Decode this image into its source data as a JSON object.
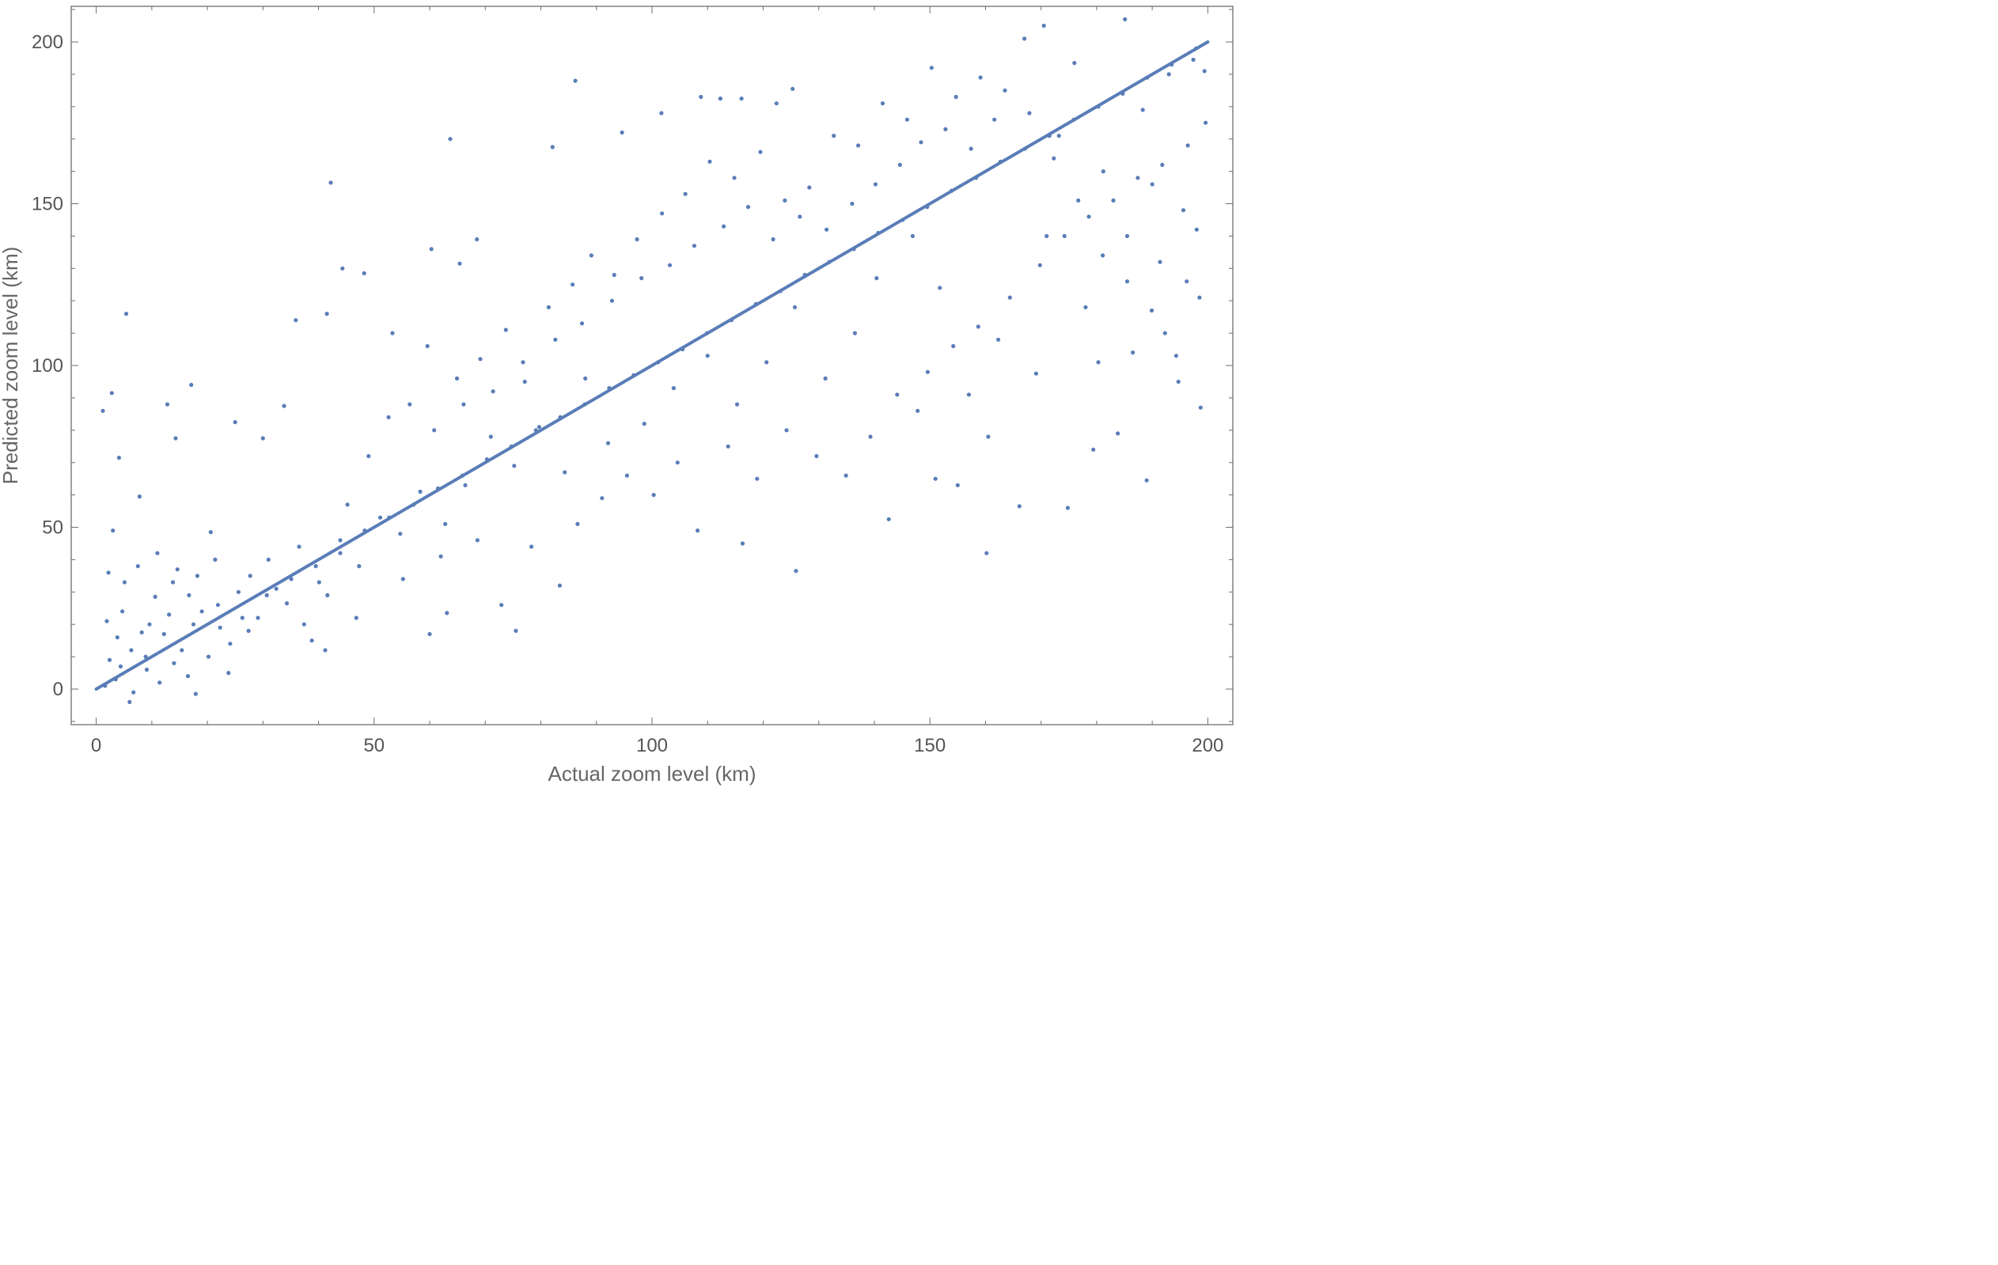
{
  "chart_data": {
    "type": "scatter",
    "title": "",
    "xlabel": "Actual zoom level (km)",
    "ylabel": "Predicted zoom level (km)",
    "xlim": [
      -4.5,
      204.5
    ],
    "ylim": [
      -11,
      211
    ],
    "x_ticks": [
      0,
      50,
      100,
      150,
      200
    ],
    "y_ticks": [
      0,
      50,
      100,
      150,
      200
    ],
    "x_tick_labels": [
      "0",
      "50",
      "100",
      "150",
      "200"
    ],
    "y_tick_labels": [
      "0",
      "50",
      "100",
      "150",
      "200"
    ],
    "grid": false,
    "legend": "none",
    "point_color": "#5a7db8",
    "line_color": "#5a7db8",
    "reference_line": {
      "x": [
        0,
        200
      ],
      "y": [
        0,
        200
      ]
    },
    "points": [
      [
        1.2,
        86
      ],
      [
        2.8,
        91.5
      ],
      [
        4.1,
        71.5
      ],
      [
        5.4,
        116
      ],
      [
        17.1,
        94
      ],
      [
        14.3,
        77.5
      ],
      [
        12.8,
        88
      ],
      [
        25.0,
        82.5
      ],
      [
        30.0,
        77.5
      ],
      [
        35.9,
        114
      ],
      [
        33.8,
        87.5
      ],
      [
        41.5,
        116
      ],
      [
        42.2,
        156.5
      ],
      [
        44.3,
        130
      ],
      [
        48.2,
        128.5
      ],
      [
        53.3,
        110
      ],
      [
        60.3,
        136
      ],
      [
        63.7,
        170
      ],
      [
        65.4,
        131.5
      ],
      [
        68.5,
        139
      ],
      [
        86.2,
        188
      ],
      [
        82.1,
        167.5
      ],
      [
        94.6,
        172
      ],
      [
        101.7,
        178
      ],
      [
        108.8,
        183
      ],
      [
        112.3,
        182.5
      ],
      [
        116.1,
        182.5
      ],
      [
        122.4,
        181
      ],
      [
        125.3,
        185.5
      ],
      [
        60.0,
        17
      ],
      [
        75.5,
        18
      ],
      [
        63.1,
        23.5
      ],
      [
        83.4,
        32
      ],
      [
        17.9,
        -1.5
      ],
      [
        6.0,
        -4
      ],
      [
        3.0,
        49
      ],
      [
        7.8,
        59.5
      ],
      [
        20.6,
        48.5
      ],
      [
        125.9,
        36.5
      ],
      [
        116.3,
        45
      ],
      [
        160.2,
        42
      ],
      [
        189.0,
        64.5
      ],
      [
        174.8,
        56
      ],
      [
        166.1,
        56.5
      ],
      [
        142.6,
        52.5
      ],
      [
        155.0,
        63
      ],
      [
        151.0,
        65
      ],
      [
        147.8,
        86
      ],
      [
        179.4,
        74
      ],
      [
        160.5,
        78
      ],
      [
        183.8,
        79
      ],
      [
        186.5,
        104
      ],
      [
        192.3,
        110
      ],
      [
        194.7,
        95
      ],
      [
        198.5,
        121
      ],
      [
        170.5,
        205
      ],
      [
        185.1,
        207
      ],
      [
        167.0,
        201
      ],
      [
        193.0,
        190
      ],
      [
        197.4,
        194.5
      ],
      [
        199.4,
        191
      ],
      [
        176.0,
        193.5
      ],
      [
        188.3,
        179
      ],
      [
        173.2,
        171
      ],
      [
        181.2,
        160
      ],
      [
        190.0,
        156
      ],
      [
        195.6,
        148
      ],
      [
        198.0,
        142
      ],
      [
        196.2,
        126
      ],
      [
        191.4,
        132
      ],
      [
        185.5,
        140
      ],
      [
        178.0,
        118
      ],
      [
        171.0,
        140
      ],
      [
        180.3,
        101
      ],
      [
        169.1,
        97.5
      ],
      [
        157.0,
        91
      ],
      [
        162.3,
        108
      ],
      [
        151.8,
        124
      ],
      [
        146.9,
        140
      ],
      [
        140.4,
        127
      ],
      [
        136.5,
        110
      ],
      [
        131.2,
        96
      ],
      [
        125.7,
        118
      ],
      [
        120.6,
        101
      ],
      [
        115.3,
        88
      ],
      [
        110.0,
        103
      ],
      [
        103.9,
        93
      ],
      [
        98.6,
        82
      ],
      [
        92.1,
        76
      ],
      [
        88.0,
        96
      ],
      [
        84.3,
        67
      ],
      [
        79.7,
        81
      ],
      [
        75.2,
        69
      ],
      [
        71.0,
        78
      ],
      [
        66.4,
        63
      ],
      [
        62.8,
        51
      ],
      [
        58.3,
        61
      ],
      [
        54.7,
        48
      ],
      [
        51.1,
        53
      ],
      [
        47.3,
        38
      ],
      [
        43.9,
        46
      ],
      [
        40.1,
        33
      ],
      [
        36.5,
        44
      ],
      [
        32.4,
        31
      ],
      [
        29.1,
        22
      ],
      [
        25.6,
        30
      ],
      [
        22.3,
        19
      ],
      [
        19.0,
        24
      ],
      [
        15.4,
        12
      ],
      [
        12.2,
        17
      ],
      [
        9.1,
        6
      ],
      [
        6.3,
        12
      ],
      [
        3.5,
        3
      ],
      [
        1.9,
        21
      ],
      [
        2.4,
        9
      ],
      [
        4.7,
        24
      ],
      [
        8.2,
        17.5
      ],
      [
        10.6,
        28.5
      ],
      [
        13.8,
        33
      ],
      [
        16.7,
        29
      ],
      [
        21.4,
        40
      ],
      [
        24.1,
        14
      ],
      [
        27.7,
        35
      ],
      [
        31.0,
        40
      ],
      [
        34.3,
        26.5
      ],
      [
        38.8,
        15
      ],
      [
        41.6,
        29
      ],
      [
        45.2,
        57
      ],
      [
        49.0,
        72
      ],
      [
        52.6,
        84
      ],
      [
        56.4,
        88
      ],
      [
        59.6,
        106
      ],
      [
        64.9,
        96
      ],
      [
        69.1,
        102
      ],
      [
        73.7,
        111
      ],
      [
        77.1,
        95
      ],
      [
        81.4,
        118
      ],
      [
        85.7,
        125
      ],
      [
        89.1,
        134
      ],
      [
        93.2,
        128
      ],
      [
        97.3,
        139
      ],
      [
        101.8,
        147
      ],
      [
        106.0,
        153
      ],
      [
        110.4,
        163
      ],
      [
        114.8,
        158
      ],
      [
        119.5,
        166
      ],
      [
        123.9,
        151
      ],
      [
        128.3,
        155
      ],
      [
        132.7,
        171
      ],
      [
        137.1,
        168
      ],
      [
        141.5,
        181
      ],
      [
        145.9,
        176
      ],
      [
        150.3,
        192
      ],
      [
        154.7,
        183
      ],
      [
        159.1,
        189
      ],
      [
        163.5,
        185
      ],
      [
        167.9,
        178
      ],
      [
        172.3,
        164
      ],
      [
        176.7,
        151
      ],
      [
        181.1,
        134
      ],
      [
        185.5,
        126
      ],
      [
        189.9,
        117
      ],
      [
        194.3,
        103
      ],
      [
        198.7,
        87
      ],
      [
        2.2,
        36
      ],
      [
        5.1,
        33
      ],
      [
        7.5,
        38
      ],
      [
        11.0,
        42
      ],
      [
        14.6,
        37
      ],
      [
        18.2,
        35
      ],
      [
        11.4,
        2
      ],
      [
        14.0,
        8
      ],
      [
        16.5,
        4
      ],
      [
        20.2,
        10
      ],
      [
        23.8,
        5
      ],
      [
        27.4,
        18
      ],
      [
        3.8,
        16
      ],
      [
        6.7,
        -1
      ],
      [
        9.6,
        20
      ],
      [
        1.6,
        1
      ],
      [
        4.4,
        7
      ],
      [
        8.9,
        10
      ],
      [
        13.1,
        23
      ],
      [
        17.5,
        20
      ],
      [
        21.9,
        26
      ],
      [
        26.3,
        22
      ],
      [
        30.7,
        29
      ],
      [
        35.1,
        34
      ],
      [
        39.5,
        38
      ],
      [
        43.9,
        42
      ],
      [
        48.3,
        49
      ],
      [
        52.7,
        53
      ],
      [
        57.1,
        57
      ],
      [
        61.5,
        62
      ],
      [
        65.9,
        66
      ],
      [
        70.3,
        71
      ],
      [
        74.7,
        75
      ],
      [
        79.1,
        80
      ],
      [
        83.5,
        84
      ],
      [
        87.9,
        88
      ],
      [
        92.3,
        93
      ],
      [
        96.7,
        97
      ],
      [
        101.1,
        101
      ],
      [
        105.5,
        105
      ],
      [
        109.9,
        110
      ],
      [
        114.3,
        114
      ],
      [
        118.7,
        119
      ],
      [
        123.1,
        123
      ],
      [
        127.5,
        128
      ],
      [
        131.9,
        132
      ],
      [
        136.3,
        136
      ],
      [
        140.7,
        141
      ],
      [
        145.1,
        145
      ],
      [
        149.5,
        149
      ],
      [
        153.9,
        154
      ],
      [
        158.3,
        158
      ],
      [
        162.7,
        163
      ],
      [
        167.1,
        167
      ],
      [
        171.5,
        171
      ],
      [
        175.9,
        176
      ],
      [
        180.3,
        180
      ],
      [
        184.7,
        184
      ],
      [
        189.1,
        189
      ],
      [
        193.5,
        193
      ],
      [
        197.9,
        198
      ],
      [
        37.4,
        20
      ],
      [
        41.2,
        12
      ],
      [
        46.8,
        22
      ],
      [
        55.2,
        34
      ],
      [
        62.0,
        41
      ],
      [
        68.6,
        46
      ],
      [
        72.9,
        26
      ],
      [
        78.3,
        44
      ],
      [
        86.6,
        51
      ],
      [
        91.0,
        59
      ],
      [
        95.5,
        66
      ],
      [
        100.3,
        60
      ],
      [
        104.6,
        70
      ],
      [
        108.2,
        49
      ],
      [
        113.7,
        75
      ],
      [
        118.9,
        65
      ],
      [
        124.2,
        80
      ],
      [
        129.6,
        72
      ],
      [
        134.9,
        66
      ],
      [
        139.3,
        78
      ],
      [
        144.1,
        91
      ],
      [
        149.6,
        98
      ],
      [
        154.2,
        106
      ],
      [
        158.7,
        112
      ],
      [
        164.4,
        121
      ],
      [
        169.8,
        131
      ],
      [
        174.2,
        140
      ],
      [
        178.6,
        146
      ],
      [
        183.0,
        151
      ],
      [
        187.4,
        158
      ],
      [
        191.8,
        162
      ],
      [
        196.4,
        168
      ],
      [
        199.6,
        175
      ],
      [
        60.8,
        80
      ],
      [
        66.1,
        88
      ],
      [
        71.4,
        92
      ],
      [
        76.8,
        101
      ],
      [
        82.6,
        108
      ],
      [
        87.4,
        113
      ],
      [
        92.8,
        120
      ],
      [
        98.1,
        127
      ],
      [
        103.2,
        131
      ],
      [
        107.6,
        137
      ],
      [
        112.9,
        143
      ],
      [
        117.3,
        149
      ],
      [
        121.8,
        139
      ],
      [
        126.6,
        146
      ],
      [
        131.4,
        142
      ],
      [
        136.0,
        150
      ],
      [
        140.2,
        156
      ],
      [
        144.6,
        162
      ],
      [
        148.4,
        169
      ],
      [
        152.8,
        173
      ],
      [
        157.4,
        167
      ],
      [
        161.6,
        176
      ]
    ]
  }
}
